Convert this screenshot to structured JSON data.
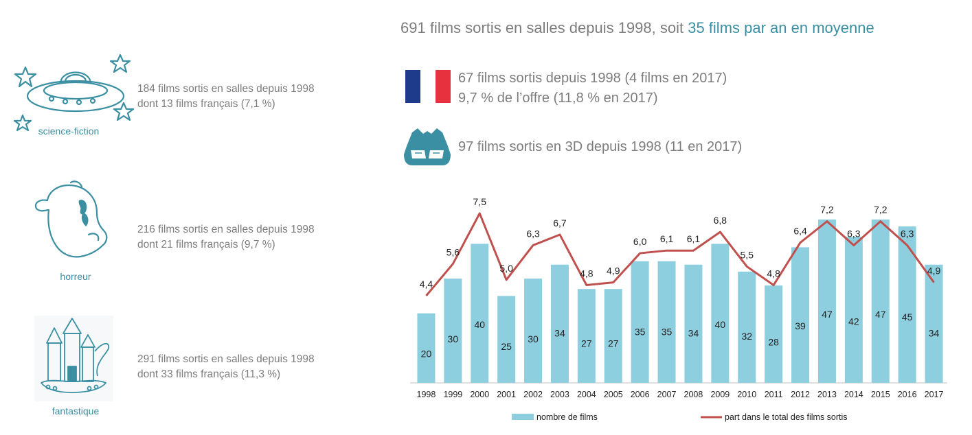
{
  "header": {
    "title_part1": "691 films sortis en salles depuis 1998, soit ",
    "title_highlight": "35 films par an en moyenne"
  },
  "genres": [
    {
      "label": "science-fiction",
      "line1": "184 films  sortis en salles depuis 1998",
      "line2": "dont 13 films français (7,1 %)"
    },
    {
      "label": "horreur",
      "line1": "216 films  sortis en salles depuis 1998",
      "line2": "dont 21 films français (9,7 %)"
    },
    {
      "label": "fantastique",
      "line1": "291 films  sortis en salles depuis 1998",
      "line2": "dont 33 films français (11,3 %)"
    }
  ],
  "french": {
    "line1": "67 films sortis depuis 1998 (4 films en 2017)",
    "line2": "9,7 % de l’offre (11,8 % en 2017)"
  },
  "threed": {
    "line1": "97 films sortis en 3D depuis 1998 (11 en 2017)"
  },
  "colors": {
    "bar": "#8ecfdf",
    "line": "#c0504d",
    "accent": "#3a8fa3",
    "flag_blue": "#1e3a8a",
    "flag_red": "#e8313f"
  },
  "chart_data": {
    "type": "bar",
    "categories": [
      "1998",
      "1999",
      "2000",
      "2001",
      "2002",
      "2003",
      "2004",
      "2005",
      "2006",
      "2007",
      "2008",
      "2009",
      "2010",
      "2011",
      "2012",
      "2013",
      "2014",
      "2015",
      "2016",
      "2017"
    ],
    "series": [
      {
        "name": "nombre de films",
        "type": "bar",
        "values": [
          20,
          30,
          40,
          25,
          30,
          34,
          27,
          27,
          35,
          35,
          34,
          40,
          32,
          28,
          39,
          47,
          42,
          47,
          45,
          34
        ],
        "labels": [
          "20",
          "30",
          "40",
          "25",
          "30",
          "34",
          "27",
          "27",
          "35",
          "35",
          "34",
          "40",
          "32",
          "28",
          "39",
          "47",
          "42",
          "47",
          "45",
          "34"
        ]
      },
      {
        "name": "part dans le total des films sortis",
        "type": "line",
        "values": [
          4.4,
          5.6,
          7.5,
          5.0,
          6.3,
          6.7,
          4.8,
          4.9,
          6.0,
          6.1,
          6.1,
          6.8,
          5.5,
          4.8,
          6.4,
          7.2,
          6.3,
          7.2,
          6.3,
          4.9
        ],
        "labels": [
          "4,4",
          "5,6",
          "7,5",
          "5,0",
          "6,3",
          "6,7",
          "4,8",
          "4,9",
          "6,0",
          "6,1",
          "6,1",
          "6,8",
          "5,5",
          "4,8",
          "6,4",
          "7,2",
          "6,3",
          "7,2",
          "6,3",
          "4,9"
        ]
      }
    ],
    "bar_ylim": [
      0,
      50
    ],
    "line_ylim": [
      0,
      10
    ],
    "legend_position": "bottom"
  }
}
